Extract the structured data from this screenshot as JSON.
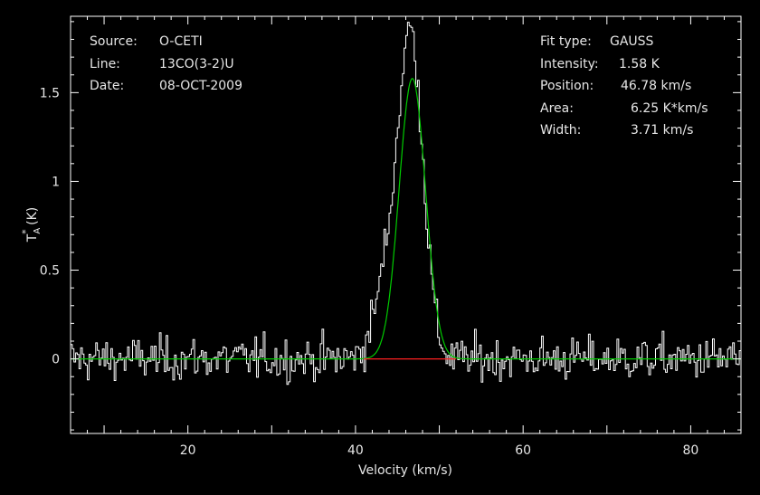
{
  "colors": {
    "background": "#000000",
    "axes": "#ffffff",
    "text": "#e6e6e6",
    "spectrum": "#ffffff",
    "fit": "#00cc00",
    "baseline_window": "#ff2020"
  },
  "header_left": {
    "rows": [
      {
        "key": "Source:",
        "value": "O-CETI"
      },
      {
        "key": "Line:",
        "value": "13CO(3-2)U"
      },
      {
        "key": "Date:",
        "value": "08-OCT-2009"
      }
    ]
  },
  "header_right": {
    "rows": [
      {
        "key": "Fit type:",
        "value": "GAUSS"
      },
      {
        "key": "Intensity:",
        "value": "1.58 K"
      },
      {
        "key": "Position:",
        "value": "46.78 km/s"
      },
      {
        "key": "Area:",
        "value": "6.25 K*km/s"
      },
      {
        "key": "Width:",
        "value": "3.71 km/s"
      }
    ]
  },
  "chart_data": {
    "type": "line",
    "xlabel": "Velocity (km/s)",
    "ylabel_main": "T",
    "ylabel_sub": "A",
    "ylabel_sup": "*",
    "ylabel_unit": " (K)",
    "xlim": [
      6,
      86
    ],
    "ylim": [
      -0.42,
      1.93
    ],
    "xticks_major": [
      20,
      40,
      60,
      80
    ],
    "yticks_major": [
      0,
      0.5,
      1,
      1.5
    ],
    "ytick_labels": [
      "0",
      "0.5",
      "1",
      "1.5"
    ],
    "grid": false,
    "series": [
      {
        "role": "spectrum",
        "x_start": 6,
        "x_step": 0.2,
        "noise_rms": 0.11,
        "peak_center": 46.5,
        "peak_amplitude": 1.82,
        "shoulder_center": 43.5,
        "shoulder_amplitude": 0.4
      },
      {
        "role": "gaussian-fit",
        "amplitude": 1.58,
        "center": 46.78,
        "fwhm": 3.71
      },
      {
        "role": "baseline-window",
        "x": [
          41,
          52
        ],
        "y": [
          0,
          0
        ]
      }
    ]
  }
}
